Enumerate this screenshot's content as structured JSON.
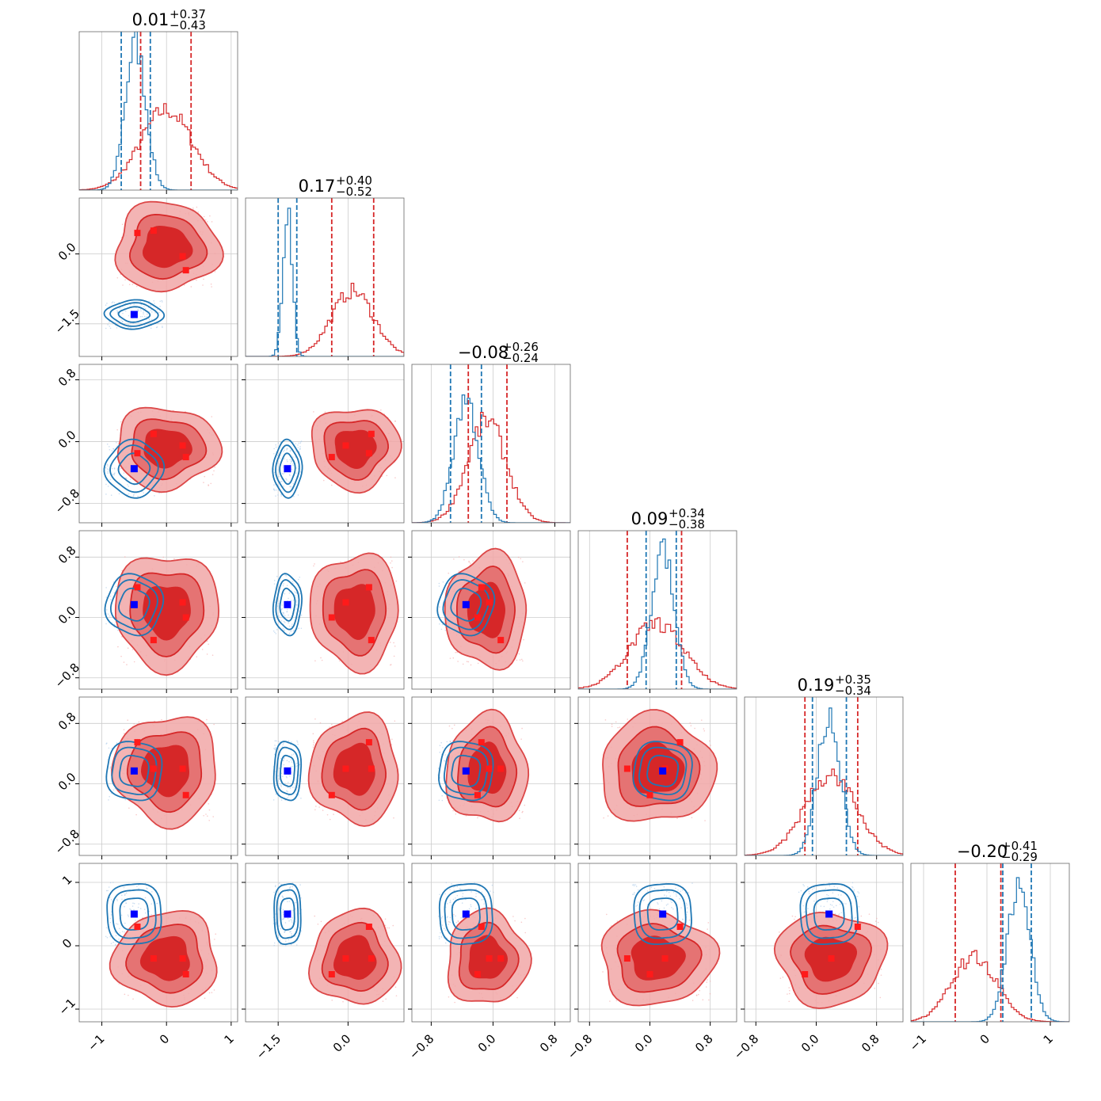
{
  "chart_data": {
    "type": "corner",
    "n_params": 6,
    "series": [
      {
        "name": "",
        "color": "#1f77b4"
      },
      {
        "name": "",
        "color": "#d62728"
      }
    ],
    "titles": [
      {
        "main": "0.01",
        "plus": "+0.37",
        "minus": "−0.43"
      },
      {
        "main": "0.17",
        "plus": "+0.40",
        "minus": "−0.52"
      },
      {
        "main": "−0.08",
        "plus": "+0.26",
        "minus": "−0.24"
      },
      {
        "main": "0.09",
        "plus": "+0.34",
        "minus": "−0.38"
      },
      {
        "main": "0.19",
        "plus": "+0.35",
        "minus": "−0.34"
      },
      {
        "main": "−0.20",
        "plus": "+0.41",
        "minus": "−0.29"
      }
    ],
    "axis_ranges": [
      [
        -1.35,
        1.1
      ],
      [
        -2.2,
        1.2
      ],
      [
        -1.05,
        1.0
      ],
      [
        -0.95,
        1.15
      ],
      [
        -0.95,
        1.15
      ],
      [
        -1.2,
        1.3
      ]
    ],
    "x_ticks": [
      {
        "values": [
          -1,
          0,
          1
        ],
        "labels": [
          "−1",
          "0",
          "1"
        ]
      },
      {
        "values": [
          -1.5,
          0.0
        ],
        "labels": [
          "−1.5",
          "0.0"
        ]
      },
      {
        "values": [
          -0.8,
          0.0,
          0.8
        ],
        "labels": [
          "−0.8",
          "0.0",
          "0.8"
        ]
      },
      {
        "values": [
          -0.8,
          0.0,
          0.8
        ],
        "labels": [
          "−0.8",
          "0.0",
          "0.8"
        ]
      },
      {
        "values": [
          -0.8,
          0.0,
          0.8
        ],
        "labels": [
          "−0.8",
          "0.0",
          "0.8"
        ]
      },
      {
        "values": [
          -1,
          0,
          1
        ],
        "labels": [
          "−1",
          "0",
          "1"
        ]
      }
    ],
    "y_ticks": [
      null,
      {
        "values": [
          0.0,
          -1.5
        ],
        "labels": [
          "0.0",
          "−1.5"
        ]
      },
      {
        "values": [
          0.8,
          0.0,
          -0.8
        ],
        "labels": [
          "0.8",
          "0.0",
          "−0.8"
        ]
      },
      {
        "values": [
          0.8,
          0.0,
          -0.8
        ],
        "labels": [
          "0.8",
          "0.0",
          "−0.8"
        ]
      },
      {
        "values": [
          0.8,
          0.0,
          -0.8
        ],
        "labels": [
          "0.8",
          "0.0",
          "−0.8"
        ]
      },
      {
        "values": [
          1,
          0,
          -1
        ],
        "labels": [
          "1",
          "0",
          "−1"
        ]
      }
    ],
    "blue_marker": [
      -0.5,
      -1.3,
      -0.35,
      0.17,
      0.17,
      0.5
    ],
    "red_markers": [
      [
        -0.45,
        0.45,
        -0.15,
        0.4,
        0.55,
        0.3
      ],
      [
        -0.2,
        0.5,
        0.1,
        -0.3,
        0.2,
        -0.2
      ],
      [
        0.25,
        -0.05,
        -0.05,
        0.2,
        0.2,
        -0.2
      ],
      [
        0.3,
        -0.35,
        -0.2,
        0.0,
        -0.15,
        -0.45
      ]
    ],
    "blue_contours": [
      {
        "center": [
          -0.5,
          -1.3,
          -0.35,
          0.17,
          0.17,
          0.5
        ],
        "spread": [
          0.22,
          0.15,
          0.18,
          0.2,
          0.2,
          0.25
        ]
      }
    ],
    "red_contours": [
      {
        "center": [
          0.0,
          0.15,
          -0.08,
          0.09,
          0.19,
          -0.2
        ],
        "spread": [
          0.38,
          0.45,
          0.25,
          0.36,
          0.34,
          0.35
        ]
      }
    ],
    "hist_quantiles": {
      "blue": [
        [
          -0.7,
          -0.25
        ],
        [
          -1.5,
          -1.1
        ],
        [
          -0.55,
          -0.15
        ],
        [
          -0.05,
          0.35
        ],
        [
          -0.05,
          0.4
        ],
        [
          0.25,
          0.7
        ]
      ],
      "red": [
        [
          -0.4,
          0.38
        ],
        [
          -0.35,
          0.55
        ],
        [
          -0.32,
          0.18
        ],
        [
          -0.3,
          0.42
        ],
        [
          -0.15,
          0.55
        ],
        [
          -0.5,
          0.22
        ]
      ]
    },
    "hist_shapes": {
      "blue": [
        {
          "mu": -0.48,
          "sd": 0.16,
          "amp": 1.0
        },
        {
          "mu": -1.3,
          "sd": 0.1,
          "amp": 1.0
        },
        {
          "mu": -0.35,
          "sd": 0.16,
          "amp": 0.85
        },
        {
          "mu": 0.17,
          "sd": 0.15,
          "amp": 0.95
        },
        {
          "mu": 0.17,
          "sd": 0.15,
          "amp": 0.95
        },
        {
          "mu": 0.5,
          "sd": 0.18,
          "amp": 0.95
        }
      ],
      "red": [
        {
          "mu": 0.0,
          "sd": 0.4,
          "amp": 0.55
        },
        {
          "mu": 0.1,
          "sd": 0.45,
          "amp": 0.45
        },
        {
          "mu": -0.08,
          "sd": 0.25,
          "amp": 0.7
        },
        {
          "mu": 0.09,
          "sd": 0.36,
          "amp": 0.45
        },
        {
          "mu": 0.19,
          "sd": 0.34,
          "amp": 0.55
        },
        {
          "mu": -0.2,
          "sd": 0.35,
          "amp": 0.45
        }
      ]
    }
  }
}
